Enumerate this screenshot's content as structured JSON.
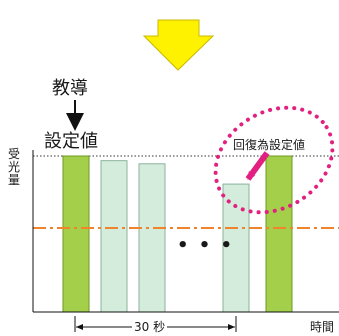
{
  "teach_label": "教導",
  "setpoint_label": "設定値",
  "recover_label": "回復為設定値",
  "y_axis_label": "受光量",
  "x_axis_label": "時間",
  "duration_label": "30 秒",
  "ellipsis": "• • •",
  "chart_data": {
    "type": "bar",
    "categories": [
      "",
      "",
      "",
      "",
      ""
    ],
    "values": [
      100,
      97,
      95,
      82,
      100
    ],
    "threshold_level": 45,
    "ylim": [
      0,
      100
    ],
    "colors": {
      "taught_bar": "#a4cf4b",
      "pale_bar": "#d4ecdc",
      "threshold_line": "#f0832b",
      "highlight": "#e2207f",
      "arrow": "#fff200"
    }
  }
}
